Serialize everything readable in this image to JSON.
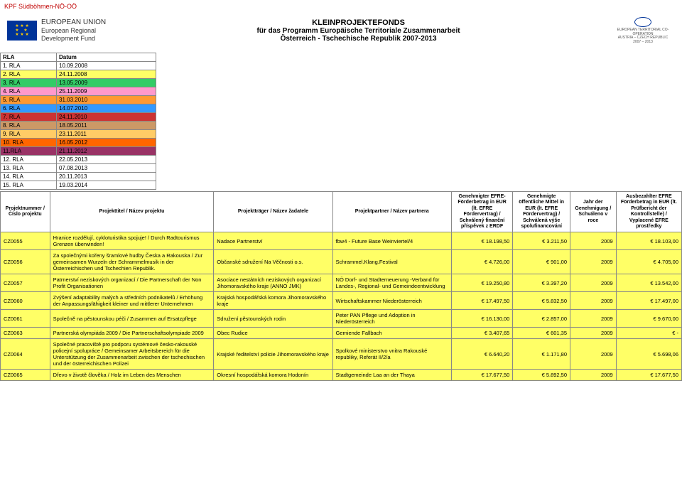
{
  "header_text": "KPF Südböhmen-NÖ-OÖ",
  "eu_logo": {
    "line1": "EUROPEAN UNION",
    "line2": "European Regional",
    "line3": "Development Fund"
  },
  "title": {
    "main": "KLEINPROJEKTEFONDS",
    "sub1": "für das Programm Europäische Territoriale Zusammenarbeit",
    "sub2": "Österreich - Tschechische Republik 2007-2013"
  },
  "etc_logo": {
    "l1": "EUROPEAN TERRITORIAL CO-OPERATION",
    "l2": "AUSTRIA – CZECH REPUBLIC",
    "l3": "2007 – 2013"
  },
  "rla": {
    "head1": "RLA",
    "head2": "Datum",
    "rows": [
      {
        "c1": "1. RLA",
        "c2": "10.09.2008",
        "bg": "#ffffff"
      },
      {
        "c1": "2. RLA",
        "c2": "24.11.2008",
        "bg": "#ffff66"
      },
      {
        "c1": "3. RLA",
        "c2": "13.05.2009",
        "bg": "#33cc66"
      },
      {
        "c1": "4. RLA",
        "c2": "25.11.2009",
        "bg": "#ff99cc"
      },
      {
        "c1": "5. RLA",
        "c2": "31.03.2010",
        "bg": "#ff9933"
      },
      {
        "c1": "6. RLA",
        "c2": "14.07.2010",
        "bg": "#3399ff"
      },
      {
        "c1": "7. RLA",
        "c2": "24.11.2010",
        "bg": "#cc3333"
      },
      {
        "c1": "8. RLA",
        "c2": "18.05.2011",
        "bg": "#cc9966"
      },
      {
        "c1": "9. RLA",
        "c2": "23.11.2011",
        "bg": "#ffcc66"
      },
      {
        "c1": "10. RLA",
        "c2": "16.05.2012",
        "bg": "#ff6600"
      },
      {
        "c1": "11.RLA",
        "c2": "21.11.2012",
        "bg": "#993366"
      },
      {
        "c1": "12. RLA",
        "c2": "22.05.2013",
        "bg": "#ffffff"
      },
      {
        "c1": "13. RLA",
        "c2": "07.08.2013",
        "bg": "#ffffff"
      },
      {
        "c1": "14. RLA",
        "c2": "20.11.2013",
        "bg": "#ffffff"
      },
      {
        "c1": "15. RLA",
        "c2": "19.03.2014",
        "bg": "#ffffff"
      }
    ]
  },
  "columns": [
    "Projektnummer / Číslo projektu",
    "Projekttitel /\nNázev projektu",
    "Projektträger /\nNázev žadatele",
    "Projektpartner /\nNázev partnera",
    "Genehmigter EFRE-Förderbetrag in EUR (lt. EFRE Fördervertrag) / Schválený finanční příspěvek z ERDF",
    "Genehmigte öffentliche Mittel in EUR (lt. EFRE Fördervertrag) / Schválená výše spolufinancování",
    "Jahr der Genehmigung / Schváleno v roce",
    "Ausbezahlter EFRE Förderbetrag in EUR (lt. Prüfbericht der Kontrollstelle) / Vyplacené EFRE prostředky"
  ],
  "rows": [
    {
      "id": "CZ0055",
      "title": "Hranice rozdělují, cykloturistika spojuje! / Durch Radtourismus Grenzen überwinden!",
      "traeger": "Nadace Partnerství",
      "partner": "fbw4 - Future Base Weinviertel/4",
      "e1": "€ 18.198,50",
      "e2": "€ 3.211,50",
      "year": "2009",
      "e3": "€ 18.103,00",
      "bg": "#ffff66"
    },
    {
      "id": "CZ0056",
      "title": "Za společnými kořeny šramlové hudby Česka a Rakouska / Zur gemeinsamen Wurzeln der Schrammelmusik in der Österreichischen und Tschechien Republik.",
      "traeger": "Občanské sdružení Na Věčnosti o.s.",
      "partner": "Schrammel.Klang.Festival",
      "e1": "€ 4.726,00",
      "e2": "€ 901,00",
      "year": "2009",
      "e3": "€ 4.705,00",
      "bg": "#ffff66"
    },
    {
      "id": "CZ0057",
      "title": "Patrnerství neziskových organizací / Die Partnerschaft der Non Profit Organisationen",
      "traeger": "Asociace nestátních neziskových organizací Jihomoravského kraje (ANNO JMK)",
      "partner": "NÖ Dorf- und Stadterneuerung -Verband für Landes-, Regional- und Gemeindeentwicklung",
      "e1": "€ 19.250,80",
      "e2": "€ 3.397,20",
      "year": "2009",
      "e3": "€ 13.542,00",
      "bg": "#ffff66"
    },
    {
      "id": "CZ0060",
      "title": "Zvýšení adaptability malých a středních podnikatelů / Erhöhung der Anpassungsfähigkeit kleiner und mittlerer Unternehmen",
      "traeger": "Krajská hospodářská komora Jihomoravského kraje",
      "partner": "Wirtschaftskammer Niederösterreich",
      "e1": "€ 17.497,50",
      "e2": "€ 5.832,50",
      "year": "2009",
      "e3": "€ 17.497,00",
      "bg": "#ffff66"
    },
    {
      "id": "CZ0061",
      "title": "Společně na pěstounskou péči / Zusammen auf Ersatzpflege",
      "traeger": "Sdružení pěstounských rodin",
      "partner": "Peter PAN Pflege und Adoption in Niederösterreich",
      "e1": "€ 16.130,00",
      "e2": "€ 2.857,00",
      "year": "2009",
      "e3": "€ 9.670,00",
      "bg": "#ffff66"
    },
    {
      "id": "CZ0063",
      "title": "Partnerská olympiáda 2009 / Die Partnerschaftsolympiade 2009",
      "traeger": "Obec Rudice",
      "partner": "Gemiende Fallbach",
      "e1": "€ 3.407,65",
      "e2": "€ 601,35",
      "year": "2009",
      "e3": "€ -",
      "bg": "#ffff66"
    },
    {
      "id": "CZ0064",
      "title": "Společné pracoviště pro podporu systémové česko-rakouské policejní spolupráce / Gemeinsamer Arbeitsbereich für die Unterstützung der Zusammenarbeit zwischen der tschechischen und der österreichischen Polizei",
      "traeger": "Krajské ředitelství policie Jihomoravského kraje",
      "partner": "Spolkové ministerstvo vnitra Rakouské republiky, Referát II/2/a",
      "e1": "€ 6.640,20",
      "e2": "€ 1.171,80",
      "year": "2009",
      "e3": "€ 5.698,06",
      "bg": "#ffff66"
    },
    {
      "id": "CZ0065",
      "title": "Dřevo v životě člověka / Holz im Leben des Menschen",
      "traeger": "Okresní hospodářská komora Hodonín",
      "partner": "Stadtgemeinde Laa an der Thaya",
      "e1": "€ 17.677,50",
      "e2": "€ 5.892,50",
      "year": "2009",
      "e3": "€ 17.677,50",
      "bg": "#ffff66"
    }
  ]
}
